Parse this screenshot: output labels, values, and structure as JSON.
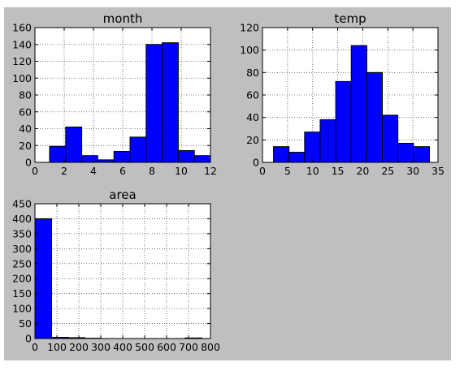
{
  "figure": {
    "background_color": "#bfbfbf",
    "axes_color": "#ffffff",
    "bar_color": "#0000ff",
    "edge_color": "#000000",
    "grid_color": "#555555"
  },
  "chart_data": [
    {
      "type": "bar",
      "title": "month",
      "grid": true,
      "xlim": [
        0,
        12
      ],
      "ylim": [
        0,
        160
      ],
      "xticks": [
        0,
        2,
        4,
        6,
        8,
        10,
        12
      ],
      "yticks": [
        0,
        20,
        40,
        60,
        80,
        100,
        120,
        140,
        160
      ],
      "bin_edges": [
        1,
        2.1,
        3.2,
        4.3,
        5.4,
        6.5,
        7.6,
        8.7,
        9.8,
        10.9,
        12
      ],
      "values": [
        19,
        42,
        8,
        3,
        13,
        30,
        140,
        142,
        14,
        8
      ]
    },
    {
      "type": "bar",
      "title": "temp",
      "grid": true,
      "xlim": [
        0,
        35
      ],
      "ylim": [
        0,
        120
      ],
      "xticks": [
        0,
        5,
        10,
        15,
        20,
        25,
        30,
        35
      ],
      "yticks": [
        0,
        20,
        40,
        60,
        80,
        100,
        120
      ],
      "bin_edges": [
        2.2,
        5.3,
        8.4,
        11.5,
        14.6,
        17.7,
        20.8,
        23.9,
        27.0,
        30.1,
        33.3
      ],
      "values": [
        14,
        9,
        27,
        38,
        72,
        104,
        80,
        42,
        17,
        14
      ]
    },
    {
      "type": "bar",
      "title": "area",
      "grid": true,
      "xlim": [
        0,
        800
      ],
      "ylim": [
        0,
        450
      ],
      "xticks": [
        0,
        100,
        200,
        300,
        400,
        500,
        600,
        700,
        800
      ],
      "yticks": [
        0,
        50,
        100,
        150,
        200,
        250,
        300,
        350,
        400,
        450
      ],
      "bin_edges": [
        0,
        76,
        152,
        228,
        304,
        380,
        456,
        532,
        608,
        684,
        760
      ],
      "values": [
        400,
        4,
        3,
        1,
        0,
        0,
        0,
        0,
        0,
        2
      ]
    }
  ]
}
